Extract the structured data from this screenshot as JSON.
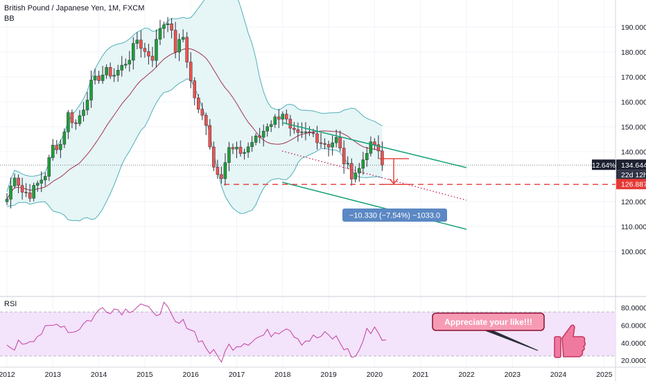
{
  "header": {
    "symbol_title": "British Pound / Japanese Yen, 1M, FXCM",
    "indicator_bb": "BB"
  },
  "rsi_panel": {
    "label": "RSI"
  },
  "colors": {
    "bull": "#26a69a",
    "bear": "#ef5350",
    "candle_body_bull": "#1f9e3a",
    "bb_band": "#4fb0b8",
    "bb_fill": "#e6f5f6",
    "bb_basis": "#a3324a",
    "channel": "#1aa37a",
    "target_line": "#e53935",
    "measure_box": "#5b88c4",
    "rsi_line": "#c2409f",
    "rsi_fill": "#f3e3fb",
    "callout_fill": "#f79bb5",
    "callout_border": "#8a0f2f",
    "thumb": "#f079a0"
  },
  "axis": {
    "price_ticks": [
      "190.000",
      "180.000",
      "170.000",
      "160.000",
      "150.000",
      "140.000",
      "130.000",
      "120.000",
      "110.000",
      "100.000"
    ],
    "rsi_ticks": [
      "80.0000",
      "60.0000",
      "40.0000",
      "20.0000"
    ],
    "years": [
      "2012",
      "2013",
      "2014",
      "2015",
      "2016",
      "2017",
      "2018",
      "2019",
      "2020",
      "2021",
      "2022",
      "2023",
      "2024",
      "2025"
    ]
  },
  "price_labels": {
    "current_pct": "12.64%",
    "current_price": "134.644",
    "countdown": "22d 12h",
    "target_price": "126.887"
  },
  "measure_label": "−10.330 (−7.54%) −1033.0",
  "annotation": {
    "text": "Appreciate your like!!!",
    "icon": "thumbs-up-icon"
  },
  "chart_data": {
    "type": "candlestick",
    "symbol": "British Pound / Japanese Yen",
    "timeframe": "1M",
    "source": "FXCM",
    "y_range": [
      93,
      197
    ],
    "x_range": [
      "2012-01",
      "2025-06"
    ],
    "series": [
      {
        "name": "close",
        "values": [
          {
            "t": "2012-01",
            "c": 121
          },
          {
            "t": "2012-03",
            "c": 131
          },
          {
            "t": "2012-05",
            "c": 124
          },
          {
            "t": "2012-07",
            "c": 123
          },
          {
            "t": "2012-09",
            "c": 127
          },
          {
            "t": "2012-11",
            "c": 131
          },
          {
            "t": "2013-01",
            "c": 142
          },
          {
            "t": "2013-03",
            "c": 143
          },
          {
            "t": "2013-05",
            "c": 155
          },
          {
            "t": "2013-07",
            "c": 151
          },
          {
            "t": "2013-09",
            "c": 158
          },
          {
            "t": "2013-11",
            "c": 167
          },
          {
            "t": "2014-01",
            "c": 170
          },
          {
            "t": "2014-03",
            "c": 172
          },
          {
            "t": "2014-05",
            "c": 171
          },
          {
            "t": "2014-07",
            "c": 174
          },
          {
            "t": "2014-09",
            "c": 178
          },
          {
            "t": "2014-11",
            "c": 185
          },
          {
            "t": "2015-01",
            "c": 180
          },
          {
            "t": "2015-03",
            "c": 178
          },
          {
            "t": "2015-05",
            "c": 190
          },
          {
            "t": "2015-07",
            "c": 193
          },
          {
            "t": "2015-09",
            "c": 181
          },
          {
            "t": "2015-11",
            "c": 186
          },
          {
            "t": "2016-01",
            "c": 168
          },
          {
            "t": "2016-03",
            "c": 156
          },
          {
            "t": "2016-05",
            "c": 152
          },
          {
            "t": "2016-07",
            "c": 134
          },
          {
            "t": "2016-09",
            "c": 131
          },
          {
            "t": "2016-11",
            "c": 141
          },
          {
            "t": "2017-01",
            "c": 140
          },
          {
            "t": "2017-03",
            "c": 140
          },
          {
            "t": "2017-05",
            "c": 144
          },
          {
            "t": "2017-07",
            "c": 146
          },
          {
            "t": "2017-09",
            "c": 151
          },
          {
            "t": "2017-11",
            "c": 153
          },
          {
            "t": "2018-01",
            "c": 156
          },
          {
            "t": "2018-03",
            "c": 148
          },
          {
            "t": "2018-05",
            "c": 146
          },
          {
            "t": "2018-07",
            "c": 147
          },
          {
            "t": "2018-09",
            "c": 147
          },
          {
            "t": "2018-11",
            "c": 144
          },
          {
            "t": "2019-01",
            "c": 143
          },
          {
            "t": "2019-03",
            "c": 145
          },
          {
            "t": "2019-05",
            "c": 136
          },
          {
            "t": "2019-07",
            "c": 131
          },
          {
            "t": "2019-09",
            "c": 133
          },
          {
            "t": "2019-11",
            "c": 141
          },
          {
            "t": "2020-01",
            "c": 143
          },
          {
            "t": "2020-03",
            "c": 134.644
          }
        ]
      },
      {
        "name": "RSI",
        "values": [
          {
            "t": "2012-01",
            "v": 33
          },
          {
            "t": "2012-06",
            "v": 42
          },
          {
            "t": "2013-03",
            "v": 63
          },
          {
            "t": "2013-06",
            "v": 52
          },
          {
            "t": "2013-12",
            "v": 71
          },
          {
            "t": "2014-02",
            "v": 80
          },
          {
            "t": "2014-08",
            "v": 77
          },
          {
            "t": "2014-12",
            "v": 85
          },
          {
            "t": "2015-03",
            "v": 71
          },
          {
            "t": "2015-06",
            "v": 82
          },
          {
            "t": "2015-09",
            "v": 61
          },
          {
            "t": "2015-12",
            "v": 62
          },
          {
            "t": "2016-03",
            "v": 46
          },
          {
            "t": "2016-06",
            "v": 30
          },
          {
            "t": "2016-09",
            "v": 21
          },
          {
            "t": "2016-11",
            "v": 36
          },
          {
            "t": "2017-06",
            "v": 45
          },
          {
            "t": "2017-12",
            "v": 55
          },
          {
            "t": "2018-02",
            "v": 60
          },
          {
            "t": "2018-06",
            "v": 42
          },
          {
            "t": "2018-12",
            "v": 48
          },
          {
            "t": "2019-03",
            "v": 45
          },
          {
            "t": "2019-06",
            "v": 30
          },
          {
            "t": "2019-08",
            "v": 23
          },
          {
            "t": "2019-11",
            "v": 52
          },
          {
            "t": "2020-01",
            "v": 58
          },
          {
            "t": "2020-04",
            "v": 40
          }
        ]
      }
    ],
    "levels": {
      "current": 134.644,
      "target": 126.887,
      "rsi_upper": 75,
      "rsi_lower": 25
    },
    "measure": {
      "change": -10.33,
      "percent": -7.54,
      "points": -1033.0
    }
  }
}
